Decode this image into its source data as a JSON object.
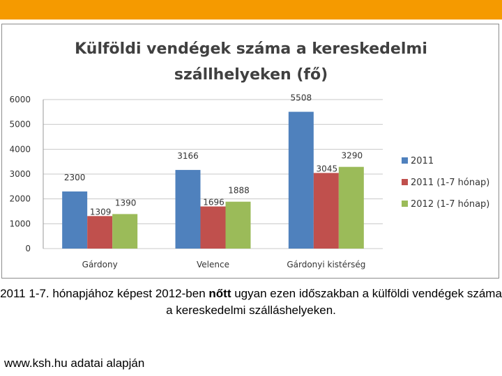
{
  "chart_data": {
    "type": "bar",
    "title_line1": "Külföldi vendégek száma a kereskedelmi",
    "title_line2": "szállhelyeken (fő)",
    "categories": [
      "Gárdony",
      "Velence",
      "Gárdonyi kistérség"
    ],
    "series": [
      {
        "name": "2011",
        "values": [
          2300,
          3166,
          5508
        ],
        "color": "#4f81bd"
      },
      {
        "name": "2011 (1-7 hónap)",
        "values": [
          1309,
          1696,
          3045
        ],
        "color": "#c0504d"
      },
      {
        "name": "2012 (1-7 hónap)",
        "values": [
          1390,
          1888,
          3290
        ],
        "color": "#9bbb59"
      }
    ],
    "yticks": [
      0,
      1000,
      2000,
      3000,
      4000,
      5000,
      6000
    ],
    "ylim": [
      0,
      6000
    ],
    "grid": true,
    "legend": "right"
  },
  "caption": {
    "before": "2011 1-7. hónapjához képest 2012-ben ",
    "bold": "nőtt",
    "after": "  ugyan ezen időszakban a külföldi vendégek száma a kereskedelmi szálláshelyeken."
  },
  "source": "www.ksh.hu adatai alapján",
  "colors": {
    "top_bar": "#f59a00",
    "grid": "#c8c8c8"
  }
}
